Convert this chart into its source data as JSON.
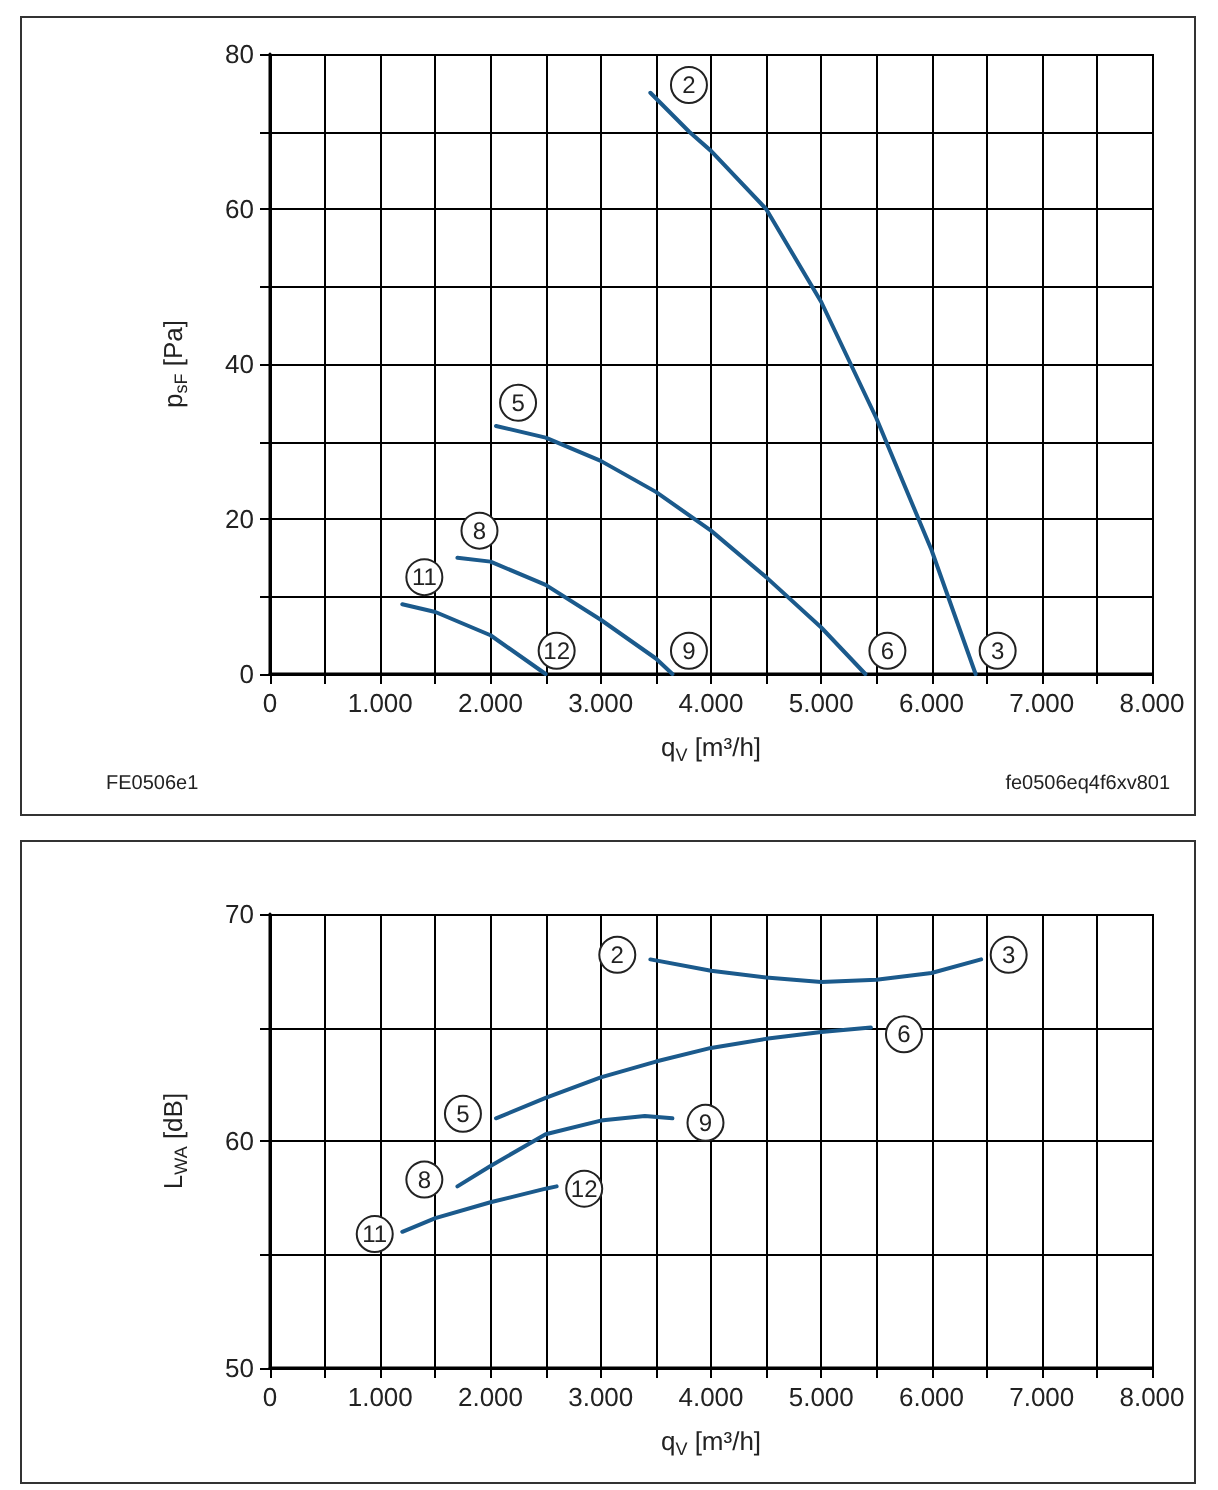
{
  "chart_data": [
    {
      "type": "line",
      "xlabel": "q$_{V}$ [m³/h]",
      "ylabel": "p$_{sF}$ [Pa]",
      "marker": "none",
      "grid": true,
      "xlim": [
        0,
        8000
      ],
      "xticks": [
        0,
        {
          "value": 500,
          "label": null
        },
        {
          "value": 1000,
          "label": "1.000"
        },
        {
          "value": 1500,
          "label": null
        },
        {
          "value": 2000,
          "label": "2.000"
        },
        {
          "value": 2500,
          "label": null
        },
        {
          "value": 3000,
          "label": "3.000"
        },
        {
          "value": 3500,
          "label": null
        },
        {
          "value": 4000,
          "label": "4.000"
        },
        {
          "value": 4500,
          "label": null
        },
        {
          "value": 5000,
          "label": "5.000"
        },
        {
          "value": 5500,
          "label": null
        },
        {
          "value": 6000,
          "label": "6.000"
        },
        {
          "value": 6500,
          "label": null
        },
        {
          "value": 7000,
          "label": "7.000"
        },
        {
          "value": 7500,
          "label": null
        },
        {
          "value": 8000,
          "label": "8.000"
        }
      ],
      "ylim": [
        0,
        80
      ],
      "yticks": [
        0,
        {
          "value": 10,
          "label": null
        },
        20,
        {
          "value": 30,
          "label": null
        },
        40,
        {
          "value": 50,
          "label": null
        },
        60,
        {
          "value": 70,
          "label": null
        },
        80
      ],
      "series": [
        {
          "color": "#1b5a8c",
          "x": [
            3450,
            3800,
            4000,
            4500,
            5000,
            5500,
            6000,
            6400
          ],
          "values": [
            75,
            70,
            67.5,
            60,
            48,
            33,
            16,
            0
          ]
        },
        {
          "color": "#1b5a8c",
          "x": [
            2050,
            2500,
            3000,
            3500,
            4000,
            4500,
            5000,
            5400
          ],
          "values": [
            32,
            30.5,
            27.5,
            23.5,
            18.5,
            12.5,
            6,
            0
          ]
        },
        {
          "color": "#1b5a8c",
          "x": [
            1700,
            2000,
            2500,
            3000,
            3500,
            3650
          ],
          "values": [
            15,
            14.5,
            11.5,
            7,
            2,
            0
          ]
        },
        {
          "color": "#1b5a8c",
          "x": [
            1200,
            1500,
            2000,
            2500
          ],
          "values": [
            9,
            8,
            5,
            0
          ]
        }
      ],
      "annotations": [
        {
          "text": "2",
          "x": 3800,
          "y": 76
        },
        {
          "text": "3",
          "x": 6600,
          "y": 3
        },
        {
          "text": "5",
          "x": 2250,
          "y": 35
        },
        {
          "text": "6",
          "x": 5600,
          "y": 3
        },
        {
          "text": "8",
          "x": 1900,
          "y": 18.5
        },
        {
          "text": "9",
          "x": 3800,
          "y": 3
        },
        {
          "text": "11",
          "x": 1400,
          "y": 12.5
        },
        {
          "text": "12",
          "x": 2600,
          "y": 3
        },
        "FE0506e1",
        "fe0506eq4f6xv801"
      ]
    },
    {
      "type": "line",
      "xlabel": "q$_{V}$ [m³/h]",
      "ylabel": "L$_{WA}$ [dB]",
      "marker": "none",
      "grid": true,
      "xlim": [
        0,
        8000
      ],
      "xticks": [
        0,
        {
          "value": 500,
          "label": null
        },
        {
          "value": 1000,
          "label": "1.000"
        },
        {
          "value": 1500,
          "label": null
        },
        {
          "value": 2000,
          "label": "2.000"
        },
        {
          "value": 2500,
          "label": null
        },
        {
          "value": 3000,
          "label": "3.000"
        },
        {
          "value": 3500,
          "label": null
        },
        {
          "value": 4000,
          "label": "4.000"
        },
        {
          "value": 4500,
          "label": null
        },
        {
          "value": 5000,
          "label": "5.000"
        },
        {
          "value": 5500,
          "label": null
        },
        {
          "value": 6000,
          "label": "6.000"
        },
        {
          "value": 6500,
          "label": null
        },
        {
          "value": 7000,
          "label": "7.000"
        },
        {
          "value": 7500,
          "label": null
        },
        {
          "value": 8000,
          "label": "8.000"
        }
      ],
      "ylim": [
        50,
        70
      ],
      "yticks": [
        50,
        {
          "value": 55,
          "label": null
        },
        60,
        {
          "value": 65,
          "label": null
        },
        70
      ],
      "series": [
        {
          "color": "#1b5a8c",
          "x": [
            3450,
            4000,
            4500,
            5000,
            5500,
            6000,
            6450
          ],
          "values": [
            68,
            67.5,
            67.2,
            67,
            67.1,
            67.4,
            68
          ]
        },
        {
          "color": "#1b5a8c",
          "x": [
            2050,
            2500,
            3000,
            3500,
            4000,
            4500,
            5000,
            5450
          ],
          "values": [
            61,
            61.9,
            62.8,
            63.5,
            64.1,
            64.5,
            64.8,
            65
          ]
        },
        {
          "color": "#1b5a8c",
          "x": [
            1700,
            2000,
            2500,
            3000,
            3400,
            3650
          ],
          "values": [
            58,
            58.9,
            60.3,
            60.9,
            61.1,
            61
          ]
        },
        {
          "color": "#1b5a8c",
          "x": [
            1200,
            1500,
            2000,
            2500,
            2600
          ],
          "values": [
            56,
            56.6,
            57.3,
            57.9,
            58
          ]
        }
      ],
      "annotations": [
        {
          "text": "2",
          "x": 3150,
          "y": 68.2
        },
        {
          "text": "3",
          "x": 6700,
          "y": 68.2
        },
        {
          "text": "5",
          "x": 1750,
          "y": 61.2
        },
        {
          "text": "6",
          "x": 5750,
          "y": 64.7
        },
        {
          "text": "8",
          "x": 1400,
          "y": 58.3
        },
        {
          "text": "9",
          "x": 3950,
          "y": 60.8
        },
        {
          "text": "11",
          "x": 950,
          "y": 55.9
        },
        {
          "text": "12",
          "x": 2850,
          "y": 57.9
        }
      ]
    }
  ]
}
